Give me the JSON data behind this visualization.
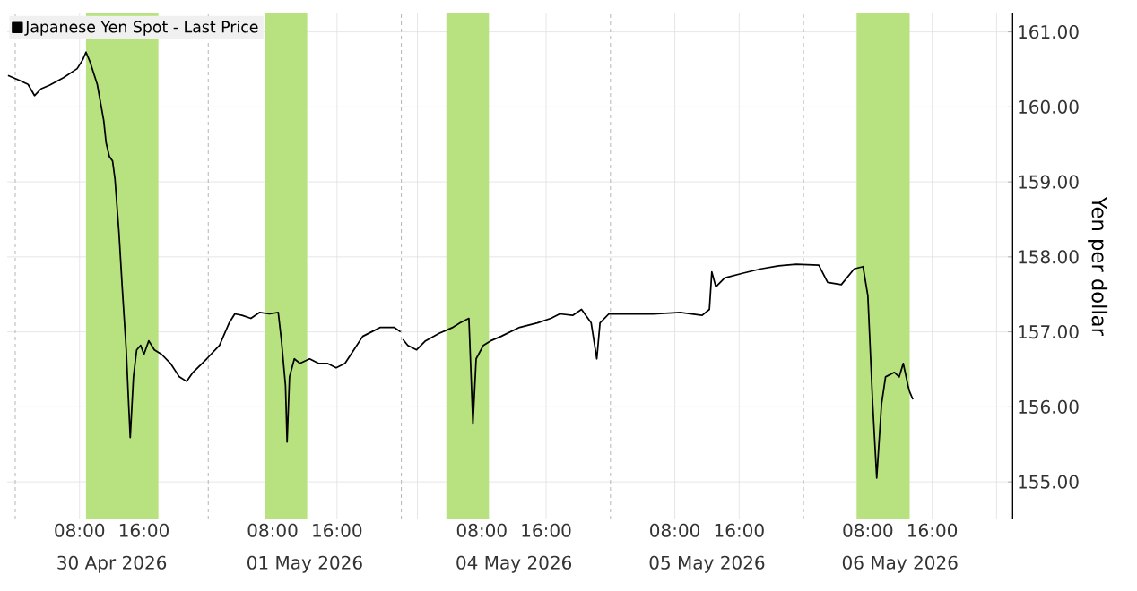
{
  "chart_data": [
    {
      "type": "line",
      "legend": "top left",
      "grid": true,
      "tick_labels": "x",
      "x": [
        "2026-04-29T23:06",
        "2026-04-30T00:24",
        "2026-04-30T01:36",
        "2026-04-30T02:24",
        "2026-04-30T03:12",
        "2026-04-30T04:18",
        "2026-04-30T06:00",
        "2026-04-30T07:42",
        "2026-04-30T08:24",
        "2026-04-30T08:48",
        "2026-04-30T09:18",
        "2026-04-30T10:12",
        "2026-04-30T11:00",
        "2026-04-30T11:18",
        "2026-04-30T11:42",
        "2026-04-30T12:06",
        "2026-04-30T12:24",
        "2026-04-30T12:54",
        "2026-04-30T13:18",
        "2026-04-30T13:48",
        "2026-04-30T14:06",
        "2026-04-30T14:18",
        "2026-04-30T14:42",
        "2026-04-30T15:06",
        "2026-04-30T15:36",
        "2026-04-30T16:00",
        "2026-04-30T16:36",
        "2026-04-30T17:18",
        "2026-04-30T18:12",
        "2026-04-30T19:18",
        "2026-04-30T20:24",
        "2026-04-30T21:18",
        "2026-04-30T22:06",
        "2026-04-30T23:48",
        "2026-05-01T01:24",
        "2026-05-01T02:36",
        "2026-05-01T03:18",
        "2026-05-01T04:12",
        "2026-05-01T05:18",
        "2026-05-01T06:24",
        "2026-05-01T07:36",
        "2026-05-01T08:42",
        "2026-05-01T09:06",
        "2026-05-01T09:36",
        "2026-05-01T09:48",
        "2026-05-01T10:06",
        "2026-05-01T10:42",
        "2026-05-01T11:24",
        "2026-05-01T12:36",
        "2026-05-01T13:42",
        "2026-05-01T14:48",
        "2026-05-01T15:54",
        "2026-05-01T17:00",
        "2026-05-01T18:06",
        "2026-05-01T19:12",
        "2026-05-01T20:18",
        "2026-05-01T21:24",
        "2026-05-01T23:06",
        "2026-05-01T23:54"
      ],
      "series": [
        {
          "name": "Japanese Yen Spot - Last Price",
          "color": "#000000",
          "values": [
            160.42,
            160.36,
            160.3,
            160.15,
            160.24,
            160.29,
            160.39,
            160.51,
            160.63,
            160.73,
            160.6,
            160.3,
            159.82,
            159.52,
            159.34,
            159.28,
            159.04,
            158.32,
            157.6,
            156.76,
            156.04,
            155.59,
            156.4,
            156.76,
            156.82,
            156.7,
            156.88,
            156.76,
            156.7,
            156.58,
            156.4,
            156.34,
            156.46,
            156.64,
            156.82,
            157.12,
            157.24,
            157.22,
            157.18,
            157.26,
            157.24,
            157.26,
            156.88,
            156.28,
            155.53,
            156.4,
            156.64,
            156.58,
            156.64,
            156.58,
            156.58,
            156.52,
            156.58,
            156.76,
            156.94,
            157.0,
            157.06,
            157.06,
            157.0
          ]
        }
      ],
      "xlim": [
        "2026-04-29T23:00",
        "2026-05-02T00:00"
      ],
      "ylim": [
        154.5,
        161.25
      ],
      "xticks": [
        {
          "value": "2026-04-30T08:00",
          "label": "08:00"
        },
        {
          "value": "2026-04-30T16:00",
          "label": "16:00"
        },
        {
          "value": "2026-05-01T08:00",
          "label": "08:00"
        },
        {
          "value": "2026-05-01T16:00",
          "label": "16:00"
        }
      ],
      "yticks": [
        155,
        156,
        157,
        158,
        159,
        160,
        161
      ],
      "annotations": [
        "30 Apr 2026",
        "01 May 2026"
      ],
      "ref_lines": [
        {
          "axis": "x",
          "value": "2026-04-30T00:00",
          "color": "#bbbbbb",
          "line_style": "dashed"
        },
        {
          "axis": "x",
          "value": "2026-05-01T00:00",
          "color": "#bbbbbb",
          "line_style": "dashed"
        },
        {
          "axis": "x",
          "value": "2026-05-02T00:00",
          "color": "#bbbbbb",
          "line_style": "dashed"
        }
      ],
      "bands": [
        {
          "axis": "x",
          "from": "2026-04-30T08:48",
          "to": "2026-04-30T17:48",
          "color": "#b8e27f"
        },
        {
          "axis": "x",
          "from": "2026-05-01T07:06",
          "to": "2026-05-01T12:18",
          "color": "#b8e27f"
        }
      ]
    },
    {
      "type": "line",
      "ylabel": "Yen per dollar",
      "grid": true,
      "x": [
        "2026-05-03T22:12",
        "2026-05-03T22:48",
        "2026-05-03T23:54",
        "2026-05-04T01:00",
        "2026-05-04T02:42",
        "2026-05-04T04:24",
        "2026-05-04T05:18",
        "2026-05-04T06:24",
        "2026-05-04T06:54",
        "2026-05-04T07:18",
        "2026-05-04T08:12",
        "2026-05-04T09:06",
        "2026-05-04T10:24",
        "2026-05-04T12:42",
        "2026-05-04T14:54",
        "2026-05-04T16:36",
        "2026-05-04T17:42",
        "2026-05-04T19:18",
        "2026-05-04T20:24",
        "2026-05-04T21:36",
        "2026-05-04T22:18",
        "2026-05-04T22:42",
        "2026-05-04T23:48",
        "2026-05-05T02:00",
        "2026-05-05T05:18",
        "2026-05-05T08:42",
        "2026-05-05T11:24",
        "2026-05-05T12:18",
        "2026-05-05T12:36",
        "2026-05-05T13:06",
        "2026-05-05T14:12",
        "2026-05-05T16:24",
        "2026-05-05T18:42",
        "2026-05-05T20:54",
        "2026-05-05T23:06",
        "2026-05-06T01:54",
        "2026-05-06T03:00",
        "2026-05-06T04:42",
        "2026-05-06T06:18",
        "2026-05-06T07:24",
        "2026-05-06T08:00",
        "2026-05-06T08:36",
        "2026-05-06T09:06",
        "2026-05-06T09:42",
        "2026-05-06T10:12",
        "2026-05-06T11:18",
        "2026-05-06T11:54",
        "2026-05-06T12:24",
        "2026-05-06T13:00",
        "2026-05-06T13:12",
        "2026-05-06T13:36"
      ],
      "series": [
        {
          "color": "#000000",
          "values": [
            156.9,
            156.82,
            156.76,
            156.88,
            156.98,
            157.06,
            157.12,
            157.18,
            155.77,
            156.64,
            156.82,
            156.88,
            156.94,
            157.06,
            157.12,
            157.18,
            157.24,
            157.22,
            157.3,
            157.12,
            156.64,
            157.12,
            157.24,
            157.24,
            157.24,
            157.26,
            157.22,
            157.3,
            157.8,
            157.6,
            157.72,
            157.78,
            157.84,
            157.88,
            157.9,
            157.89,
            157.66,
            157.63,
            157.84,
            157.87,
            157.48,
            156.04,
            155.05,
            156.04,
            156.4,
            156.46,
            156.4,
            156.58,
            156.28,
            156.2,
            156.1
          ]
        }
      ],
      "xlim": [
        "2026-05-03T22:00",
        "2026-05-07T02:00"
      ],
      "ylim": [
        154.5,
        161.25
      ],
      "xticks": [
        {
          "value": "2026-05-04T00:00",
          "label": null
        },
        {
          "value": "2026-05-04T08:00",
          "label": "08:00"
        },
        {
          "value": "2026-05-04T16:00",
          "label": "16:00"
        },
        {
          "value": "2026-05-05T08:00",
          "label": "08:00"
        },
        {
          "value": "2026-05-05T16:00",
          "label": "16:00"
        },
        {
          "value": "2026-05-06T08:00",
          "label": "08:00"
        },
        {
          "value": "2026-05-06T16:00",
          "label": "16:00"
        },
        {
          "value": "2026-05-07T00:00",
          "label": null
        }
      ],
      "yticks": [
        {
          "value": 155,
          "label": "155.00"
        },
        {
          "value": 156,
          "label": "156.00"
        },
        {
          "value": 157,
          "label": "157.00"
        },
        {
          "value": 158,
          "label": "158.00"
        },
        {
          "value": 159,
          "label": "159.00"
        },
        {
          "value": 160,
          "label": "160.00"
        },
        {
          "value": 161,
          "label": "161.00"
        }
      ],
      "annotations": [
        "04 May 2026",
        "05 May 2026",
        "06 May 2026"
      ],
      "ref_lines": [
        {
          "axis": "x",
          "value": "2026-05-05T00:00",
          "color": "#bbbbbb",
          "line_style": "dashed"
        },
        {
          "axis": "x",
          "value": "2026-05-06T00:00",
          "color": "#bbbbbb",
          "line_style": "dashed"
        }
      ],
      "bands": [
        {
          "axis": "x",
          "from": "2026-05-04T03:36",
          "to": "2026-05-04T08:54",
          "color": "#b8e27f"
        },
        {
          "axis": "x",
          "from": "2026-05-06T06:36",
          "to": "2026-05-06T13:12",
          "color": "#b8e27f"
        }
      ]
    }
  ]
}
